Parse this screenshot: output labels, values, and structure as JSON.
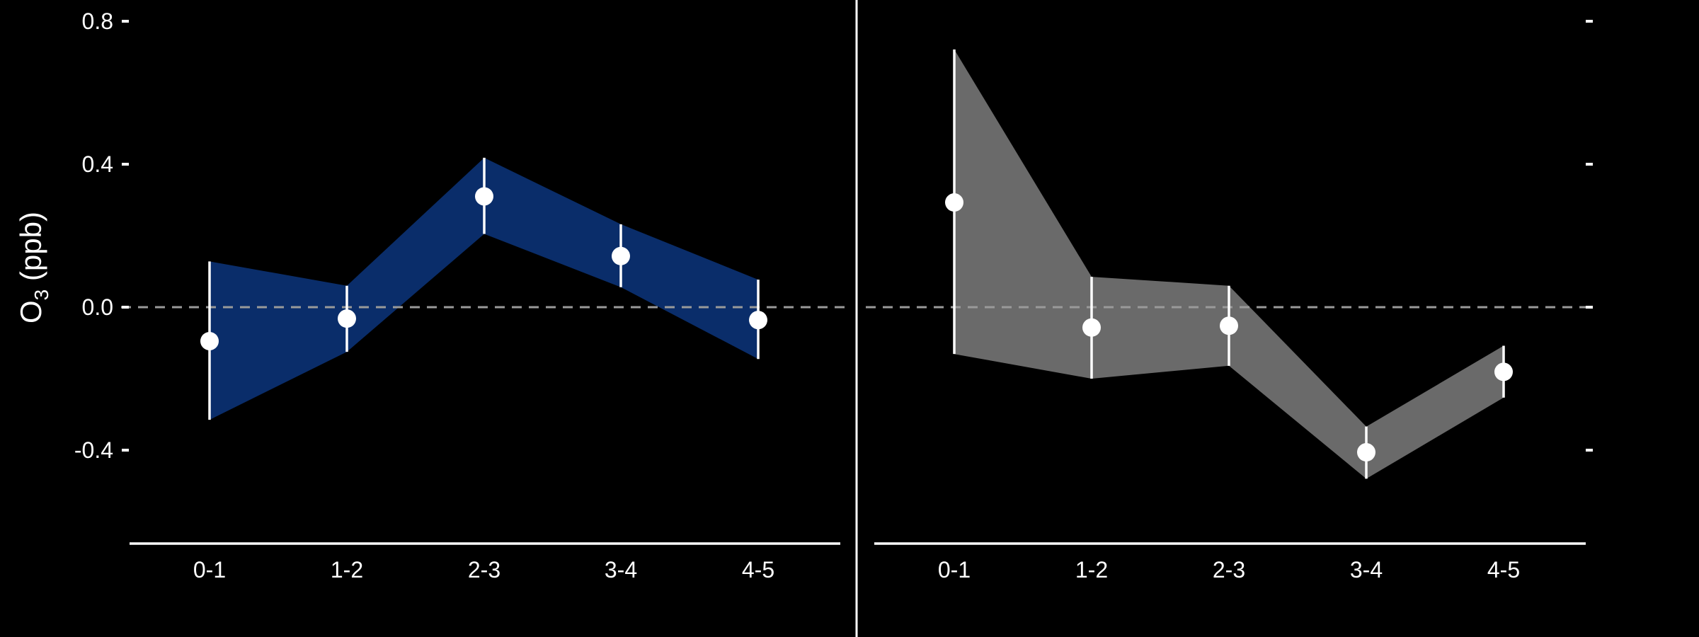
{
  "figure": {
    "background": "#000000",
    "foreground": "#ffffff",
    "ylabel_main": "O",
    "ylabel_sub": "3",
    "ylabel_unit": " (ppb)"
  },
  "chart_data": [
    {
      "type": "line",
      "panel": "left",
      "categories": [
        "0-1",
        "1-2",
        "2-3",
        "3-4",
        "4-5"
      ],
      "series": [
        {
          "values": [
            -0.095,
            -0.032,
            0.31,
            0.143,
            -0.036
          ],
          "lower": [
            -0.315,
            -0.125,
            0.205,
            0.056,
            -0.145
          ],
          "upper": [
            0.128,
            0.06,
            0.418,
            0.232,
            0.077
          ]
        }
      ],
      "band_color": "#0a2d6a",
      "ylim": [
        -0.665,
        0.8
      ],
      "yticks": [
        0.8,
        0.4,
        0.0,
        -0.4
      ],
      "ytick_labels": [
        "0.8",
        "0.4",
        "0.0",
        "-0.4"
      ],
      "reference_line": 0.0,
      "grid": false
    },
    {
      "type": "line",
      "panel": "right",
      "categories": [
        "0-1",
        "1-2",
        "2-3",
        "3-4",
        "4-5"
      ],
      "series": [
        {
          "values": [
            0.293,
            -0.057,
            -0.052,
            -0.406,
            -0.181
          ],
          "lower": [
            -0.131,
            -0.2,
            -0.164,
            -0.48,
            -0.253
          ],
          "upper": [
            0.721,
            0.085,
            0.06,
            -0.334,
            -0.108
          ]
        }
      ],
      "band_color": "#6a6a6a",
      "ylim": [
        -0.665,
        0.8
      ],
      "yticks": [
        0.8,
        0.4,
        0.0,
        -0.4
      ],
      "reference_line": 0.0,
      "grid": false
    }
  ]
}
